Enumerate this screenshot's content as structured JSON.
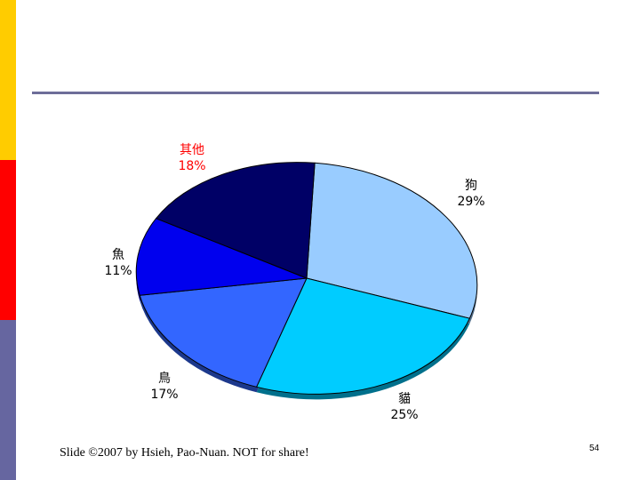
{
  "theme": {
    "bar_colors": [
      "#ffcc00",
      "#ff0000",
      "#6666a0"
    ],
    "rule_color": "#6d6d99"
  },
  "chart_data": {
    "type": "pie",
    "title": "",
    "slices": [
      {
        "label": "狗",
        "value": 29,
        "value_label": "29%",
        "color": "#99ccff",
        "label_color": "#000000"
      },
      {
        "label": "貓",
        "value": 25,
        "value_label": "25%",
        "color": "#00ccff",
        "label_color": "#000000"
      },
      {
        "label": "鳥",
        "value": 17,
        "value_label": "17%",
        "color": "#3366ff",
        "label_color": "#000000"
      },
      {
        "label": "魚",
        "value": 11,
        "value_label": "11%",
        "color": "#0000ee",
        "label_color": "#000000"
      },
      {
        "label": "其他",
        "value": 18,
        "value_label": "18%",
        "color": "#000066",
        "label_color": "#ff0000"
      }
    ]
  },
  "footer": {
    "credit": "Slide ©2007  by Hsieh, Pao-Nuan.  NOT for share!",
    "page_number": "54"
  }
}
